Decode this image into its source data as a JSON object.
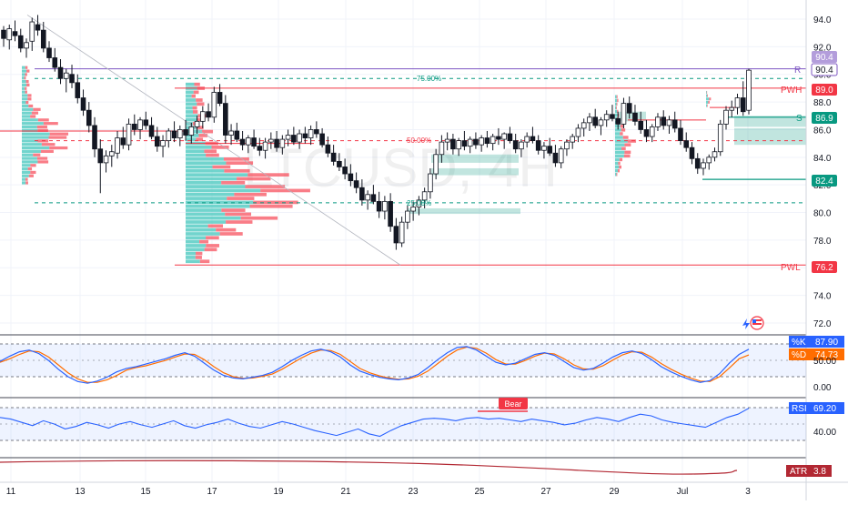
{
  "watermark": "LTCUSD, 4H",
  "price_axis": {
    "ticks": [
      "94.0",
      "92.0",
      "90.0",
      "88.0",
      "86.0",
      "84.0",
      "82.0",
      "80.0",
      "78.0",
      "76.0",
      "74.0",
      "72.0"
    ]
  },
  "time_axis": {
    "ticks": [
      "11",
      "13",
      "15",
      "17",
      "19",
      "21",
      "23",
      "25",
      "27",
      "29",
      "Jul",
      "3"
    ]
  },
  "levels": {
    "resistance": {
      "label": "R",
      "price_label": "90.4"
    },
    "pwh": {
      "label": "PWH",
      "price_label": "89.0"
    },
    "support": {
      "label": "S",
      "price_label": "86.9"
    },
    "low_line": {
      "price_label": "82.4"
    },
    "pwl": {
      "label": "PWL",
      "price_label": "76.2"
    },
    "fib_75": "75.00%",
    "fib_50": "50.00%",
    "fib_25": "25.00%"
  },
  "tag_last": "90.4",
  "stoch": {
    "k_label": "%K",
    "k_value": "87.90",
    "d_label": "%D",
    "d_value": "74.73",
    "ticks": [
      "50.00",
      "0.00"
    ]
  },
  "rsi": {
    "label": "RSI",
    "value": "69.20",
    "tick": "40.00",
    "bear_label": "Bear"
  },
  "atr": {
    "label": "ATR",
    "value": "3.8"
  },
  "colors": {
    "up": "#089981",
    "down": "#f23645",
    "resistance": "#7e57c2",
    "pwh": "#f23645",
    "support": "#089981",
    "stoch_k": "#2962ff",
    "stoch_d": "#ff6d00",
    "rsi": "#2962ff",
    "atr": "#b22833",
    "profile_up": "#4dc9c1",
    "profile_down": "#f7525f"
  },
  "chart_data": {
    "type": "candlestick",
    "title": "LTCUSD, 4H",
    "xlabel": "",
    "ylabel": "",
    "ylim": [
      71.5,
      95.5
    ],
    "x_ticks": [
      "11",
      "13",
      "15",
      "17",
      "19",
      "21",
      "23",
      "25",
      "27",
      "29",
      "Jul",
      "3"
    ],
    "ohlc": [
      [
        93.2,
        93.5,
        92.0,
        92.6
      ],
      [
        92.5,
        93.6,
        91.8,
        93.3
      ],
      [
        93.1,
        93.9,
        92.4,
        92.8
      ],
      [
        92.8,
        93.3,
        91.6,
        91.9
      ],
      [
        91.9,
        92.6,
        91.2,
        92.3
      ],
      [
        92.4,
        94.1,
        91.7,
        93.8
      ],
      [
        93.6,
        94.3,
        92.8,
        93.2
      ],
      [
        93.2,
        93.8,
        91.6,
        91.9
      ],
      [
        91.9,
        92.4,
        90.9,
        91.2
      ],
      [
        91.2,
        91.9,
        90.2,
        90.5
      ],
      [
        90.5,
        91.1,
        89.3,
        89.7
      ],
      [
        89.7,
        90.4,
        88.7,
        90.1
      ],
      [
        90.0,
        90.7,
        89.0,
        89.4
      ],
      [
        89.4,
        90.0,
        87.9,
        88.3
      ],
      [
        88.3,
        88.9,
        87.0,
        87.4
      ],
      [
        87.4,
        88.0,
        85.8,
        86.3
      ],
      [
        86.3,
        86.9,
        84.0,
        84.6
      ],
      [
        84.6,
        85.3,
        81.4,
        83.6
      ],
      [
        83.6,
        84.5,
        82.9,
        84.1
      ],
      [
        84.1,
        84.9,
        83.3,
        84.4
      ],
      [
        84.3,
        85.9,
        83.9,
        85.4
      ],
      [
        85.4,
        86.2,
        84.6,
        84.9
      ],
      [
        84.9,
        86.8,
        84.5,
        86.4
      ],
      [
        86.4,
        87.1,
        85.6,
        86.0
      ],
      [
        86.0,
        86.9,
        85.3,
        86.7
      ],
      [
        86.7,
        87.3,
        86.0,
        86.3
      ],
      [
        86.3,
        86.9,
        85.3,
        85.5
      ],
      [
        85.5,
        86.2,
        84.4,
        84.8
      ],
      [
        84.8,
        85.6,
        84.0,
        85.2
      ],
      [
        85.2,
        86.1,
        84.7,
        85.9
      ],
      [
        85.9,
        86.6,
        85.1,
        85.4
      ],
      [
        85.4,
        86.3,
        84.8,
        86.0
      ],
      [
        86.0,
        86.7,
        85.2,
        85.6
      ],
      [
        85.6,
        86.5,
        85.0,
        86.2
      ],
      [
        86.2,
        87.0,
        85.7,
        86.6
      ],
      [
        86.6,
        87.7,
        86.1,
        87.3
      ],
      [
        87.3,
        87.9,
        86.6,
        86.9
      ],
      [
        86.9,
        89.1,
        86.5,
        88.7
      ],
      [
        88.7,
        89.3,
        87.7,
        87.9
      ],
      [
        87.9,
        88.5,
        85.0,
        85.6
      ],
      [
        85.6,
        86.4,
        84.9,
        85.9
      ],
      [
        85.9,
        86.5,
        85.1,
        85.3
      ],
      [
        85.3,
        85.9,
        84.5,
        84.9
      ],
      [
        84.9,
        85.6,
        84.3,
        85.4
      ],
      [
        85.4,
        86.0,
        84.6,
        84.8
      ],
      [
        84.8,
        85.4,
        84.1,
        84.5
      ],
      [
        84.5,
        85.4,
        83.9,
        85.1
      ],
      [
        85.1,
        85.8,
        84.6,
        85.3
      ],
      [
        85.3,
        85.9,
        84.4,
        84.7
      ],
      [
        84.7,
        85.6,
        84.2,
        85.3
      ],
      [
        85.3,
        86.0,
        84.8,
        85.6
      ],
      [
        85.6,
        86.2,
        84.9,
        85.1
      ],
      [
        85.1,
        86.0,
        84.6,
        85.7
      ],
      [
        85.7,
        86.2,
        85.0,
        85.4
      ],
      [
        85.4,
        86.3,
        84.9,
        86.0
      ],
      [
        86.0,
        86.6,
        85.4,
        85.7
      ],
      [
        85.7,
        86.1,
        84.7,
        84.9
      ],
      [
        84.9,
        85.5,
        84.0,
        84.3
      ],
      [
        84.3,
        84.9,
        83.4,
        83.7
      ],
      [
        83.7,
        84.3,
        83.0,
        83.3
      ],
      [
        83.3,
        83.9,
        82.4,
        82.8
      ],
      [
        82.8,
        83.5,
        81.9,
        82.3
      ],
      [
        82.3,
        82.9,
        81.4,
        81.8
      ],
      [
        81.8,
        82.4,
        80.5,
        80.9
      ],
      [
        80.9,
        81.6,
        80.2,
        81.3
      ],
      [
        81.3,
        82.0,
        80.6,
        80.8
      ],
      [
        80.8,
        81.5,
        79.6,
        80.1
      ],
      [
        80.1,
        81.2,
        79.5,
        80.8
      ],
      [
        80.8,
        81.4,
        78.6,
        79.0
      ],
      [
        79.0,
        79.6,
        77.3,
        77.8
      ],
      [
        77.8,
        79.7,
        77.5,
        79.3
      ],
      [
        79.3,
        80.5,
        78.8,
        80.1
      ],
      [
        80.1,
        80.8,
        79.4,
        80.4
      ],
      [
        80.4,
        81.2,
        79.8,
        80.9
      ],
      [
        80.9,
        81.8,
        80.3,
        81.5
      ],
      [
        81.5,
        83.2,
        81.0,
        82.8
      ],
      [
        82.8,
        84.6,
        82.4,
        84.2
      ],
      [
        84.2,
        85.6,
        83.6,
        85.1
      ],
      [
        85.1,
        85.8,
        84.5,
        85.3
      ],
      [
        85.3,
        85.7,
        84.2,
        84.6
      ],
      [
        84.6,
        85.4,
        84.1,
        85.2
      ],
      [
        85.2,
        85.9,
        84.5,
        84.8
      ],
      [
        84.8,
        85.5,
        84.3,
        85.3
      ],
      [
        85.3,
        85.8,
        84.6,
        84.9
      ],
      [
        84.9,
        85.6,
        84.4,
        85.4
      ],
      [
        85.4,
        85.9,
        84.7,
        85.0
      ],
      [
        85.0,
        85.7,
        84.5,
        85.5
      ],
      [
        85.5,
        86.1,
        84.9,
        85.3
      ],
      [
        85.3,
        85.8,
        84.6,
        85.7
      ],
      [
        85.7,
        86.2,
        85.0,
        85.2
      ],
      [
        85.2,
        85.7,
        84.3,
        84.6
      ],
      [
        84.6,
        85.3,
        84.0,
        85.1
      ],
      [
        85.1,
        85.8,
        84.7,
        85.5
      ],
      [
        85.5,
        86.2,
        85.0,
        85.2
      ],
      [
        85.2,
        85.6,
        84.2,
        84.5
      ],
      [
        84.5,
        85.1,
        83.9,
        84.8
      ],
      [
        84.8,
        85.4,
        84.1,
        84.3
      ],
      [
        84.3,
        84.9,
        83.3,
        83.6
      ],
      [
        83.6,
        84.8,
        83.2,
        84.6
      ],
      [
        84.6,
        85.3,
        84.1,
        85.1
      ],
      [
        85.1,
        85.7,
        84.6,
        85.5
      ],
      [
        85.5,
        86.4,
        85.1,
        86.1
      ],
      [
        86.1,
        86.8,
        85.5,
        86.5
      ],
      [
        86.5,
        87.2,
        85.9,
        86.9
      ],
      [
        86.9,
        87.5,
        86.1,
        86.3
      ],
      [
        86.3,
        86.9,
        85.6,
        86.7
      ],
      [
        86.7,
        87.4,
        86.2,
        87.1
      ],
      [
        87.1,
        87.8,
        86.6,
        86.8
      ],
      [
        86.8,
        87.3,
        86.0,
        86.4
      ],
      [
        86.4,
        88.3,
        86.1,
        87.9
      ],
      [
        87.9,
        88.4,
        86.8,
        87.2
      ],
      [
        87.2,
        87.8,
        86.3,
        86.6
      ],
      [
        86.6,
        87.3,
        85.7,
        86.0
      ],
      [
        86.0,
        86.7,
        85.1,
        85.5
      ],
      [
        85.5,
        86.4,
        85.1,
        86.2
      ],
      [
        86.2,
        87.2,
        85.9,
        86.9
      ],
      [
        86.9,
        87.4,
        86.0,
        86.3
      ],
      [
        86.3,
        87.0,
        85.7,
        86.7
      ],
      [
        86.7,
        87.3,
        85.8,
        86.1
      ],
      [
        86.1,
        86.7,
        84.9,
        85.2
      ],
      [
        85.2,
        85.8,
        84.4,
        84.7
      ],
      [
        84.7,
        85.1,
        83.5,
        83.9
      ],
      [
        83.9,
        84.3,
        82.8,
        83.2
      ],
      [
        83.2,
        83.9,
        82.7,
        83.6
      ],
      [
        83.6,
        84.2,
        83.1,
        84.0
      ],
      [
        84.0,
        84.7,
        83.7,
        84.4
      ],
      [
        84.4,
        86.7,
        84.1,
        86.4
      ],
      [
        86.4,
        87.7,
        86.0,
        87.4
      ],
      [
        87.4,
        88.1,
        86.9,
        87.6
      ],
      [
        87.6,
        88.6,
        87.1,
        88.3
      ],
      [
        88.3,
        89.5,
        87.0,
        87.3
      ],
      [
        87.4,
        90.4,
        87.1,
        90.3
      ]
    ],
    "support_resistance": [
      {
        "name": "R",
        "value": 90.4
      },
      {
        "name": "PWH",
        "value": 89.0
      },
      {
        "name": "S",
        "value": 86.9
      },
      {
        "name": "",
        "value": 82.4
      },
      {
        "name": "PWL",
        "value": 76.2
      }
    ],
    "fib_levels": [
      {
        "label": "75.00%",
        "value": 89.7
      },
      {
        "label": "50.00%",
        "value": 85.2
      },
      {
        "label": "25.00%",
        "value": 80.7
      }
    ],
    "stochastic": {
      "k": 87.9,
      "d": 74.73,
      "k_series": [
        60,
        72,
        82,
        86,
        78,
        62,
        42,
        25,
        14,
        10,
        15,
        24,
        36,
        44,
        48,
        54,
        60,
        66,
        74,
        80,
        72,
        56,
        40,
        28,
        22,
        20,
        24,
        28,
        35,
        48,
        62,
        74,
        84,
        88,
        82,
        70,
        52,
        38,
        30,
        24,
        20,
        18,
        22,
        30,
        46,
        64,
        80,
        92,
        94,
        86,
        72,
        58,
        52,
        56,
        66,
        76,
        80,
        74,
        60,
        46,
        40,
        44,
        56,
        70,
        80,
        84,
        78,
        64,
        48,
        36,
        26,
        18,
        12,
        16,
        32,
        56,
        76,
        87.9
      ],
      "d_series": [
        58,
        66,
        76,
        84,
        82,
        70,
        52,
        34,
        20,
        12,
        12,
        18,
        28,
        40,
        46,
        50,
        56,
        62,
        70,
        77,
        76,
        64,
        48,
        34,
        25,
        21,
        22,
        26,
        31,
        42,
        55,
        68,
        79,
        86,
        85,
        76,
        60,
        44,
        34,
        27,
        22,
        19,
        20,
        26,
        38,
        55,
        72,
        86,
        93,
        90,
        79,
        64,
        54,
        54,
        62,
        72,
        79,
        77,
        66,
        52,
        43,
        42,
        50,
        63,
        75,
        82,
        81,
        70,
        55,
        42,
        31,
        22,
        15,
        14,
        25,
        45,
        66,
        74.73
      ]
    },
    "rsi_series": {
      "value": 69.2,
      "values": [
        58,
        56,
        52,
        48,
        54,
        50,
        44,
        47,
        52,
        49,
        45,
        50,
        53,
        49,
        46,
        50,
        54,
        48,
        45,
        49,
        52,
        56,
        51,
        47,
        45,
        49,
        53,
        50,
        46,
        42,
        39,
        36,
        40,
        44,
        38,
        35,
        42,
        48,
        52,
        56,
        57,
        56,
        54,
        57,
        58,
        56,
        57,
        55,
        53,
        56,
        54,
        52,
        49,
        51,
        55,
        58,
        56,
        53,
        58,
        62,
        60,
        55,
        52,
        50,
        48,
        46,
        52,
        58,
        62,
        69.2
      ]
    },
    "atr_series": {
      "value": 3.8
    }
  }
}
